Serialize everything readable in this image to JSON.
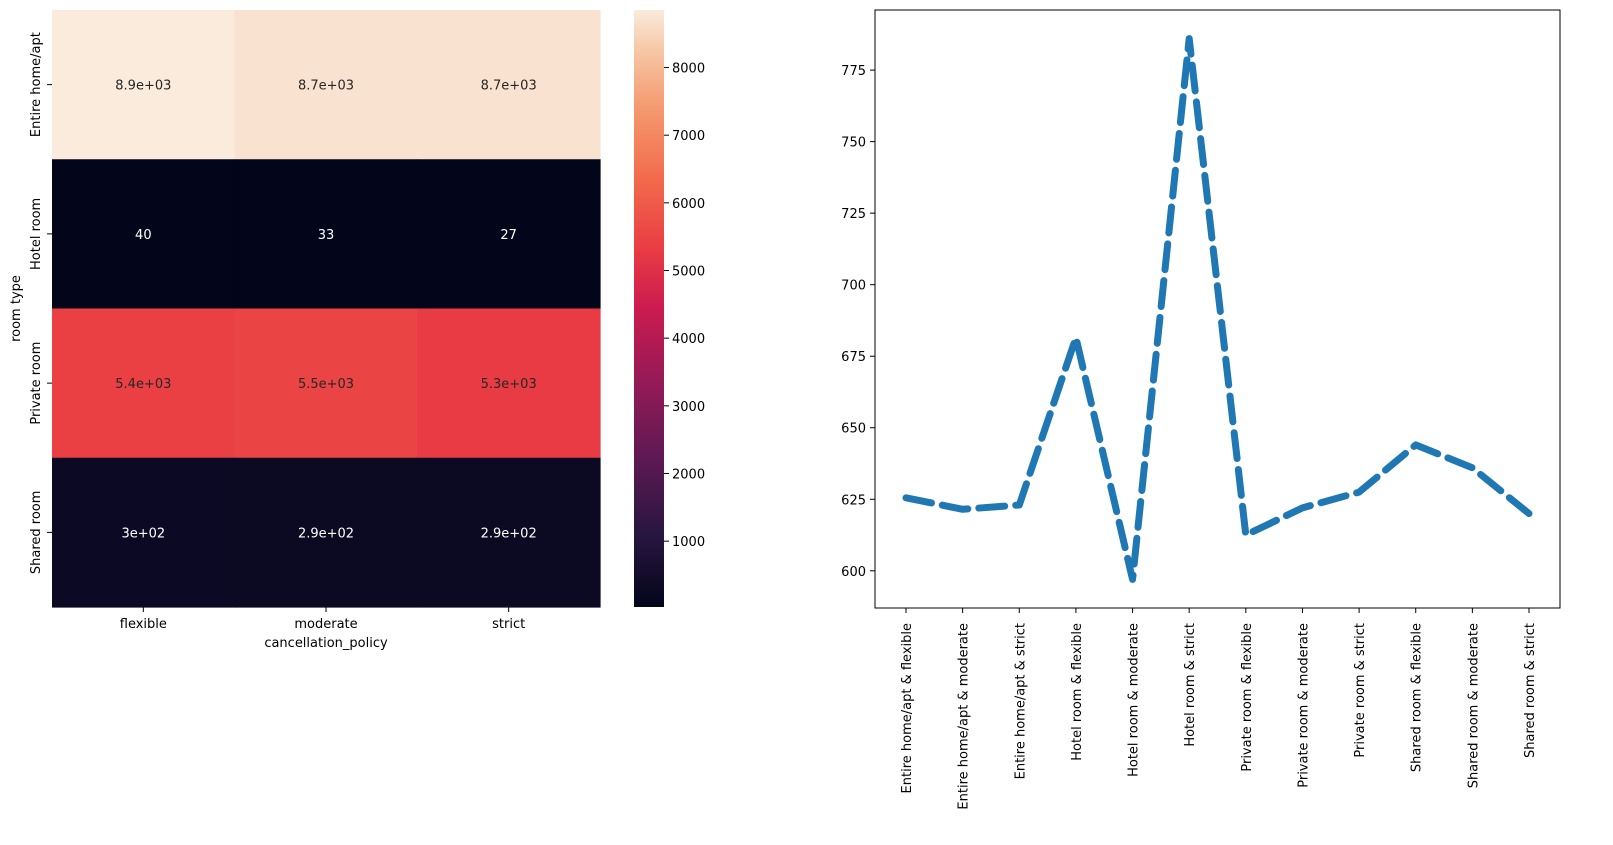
{
  "chart_data": [
    {
      "type": "heatmap",
      "xlabel": "cancellation_policy",
      "ylabel": "room type",
      "x_categories": [
        "flexible",
        "moderate",
        "strict"
      ],
      "y_categories": [
        "Entire home/apt",
        "Hotel room",
        "Private room",
        "Shared room"
      ],
      "values": [
        [
          8900,
          8700,
          8700
        ],
        [
          40,
          33,
          27
        ],
        [
          5400,
          5500,
          5300
        ],
        [
          300,
          290,
          290
        ]
      ],
      "annotations": [
        [
          "8.9e+03",
          "8.7e+03",
          "8.7e+03"
        ],
        [
          "40",
          "33",
          "27"
        ],
        [
          "5.4e+03",
          "5.5e+03",
          "5.3e+03"
        ],
        [
          "3e+02",
          "2.9e+02",
          "2.9e+02"
        ]
      ],
      "colorbar": {
        "range": [
          27,
          8850
        ],
        "ticks": [
          1000,
          2000,
          3000,
          4000,
          5000,
          6000,
          7000,
          8000
        ],
        "tick_labels": [
          "1000",
          "2000",
          "3000",
          "4000",
          "5000",
          "6000",
          "7000",
          "8000"
        ],
        "colormap": "rocket"
      }
    },
    {
      "type": "line",
      "line_style": "dashed",
      "color": "#1f77b4",
      "categories": [
        "Entire home/apt & flexible",
        "Entire home/apt & moderate",
        "Entire home/apt & strict",
        "Hotel room & flexible",
        "Hotel room & moderate",
        "Hotel room & strict",
        "Private room & flexible",
        "Private room & moderate",
        "Private room & strict",
        "Shared room & flexible",
        "Shared room & moderate",
        "Shared room & strict"
      ],
      "values": [
        625.5,
        621.5,
        623,
        681.5,
        597,
        786,
        612.5,
        622,
        627.5,
        644,
        636,
        620
      ],
      "ylim": [
        587,
        796
      ],
      "yticks": [
        600,
        625,
        650,
        675,
        700,
        725,
        750,
        775
      ],
      "ytick_labels": [
        "600",
        "625",
        "650",
        "675",
        "700",
        "725",
        "750",
        "775"
      ]
    }
  ]
}
